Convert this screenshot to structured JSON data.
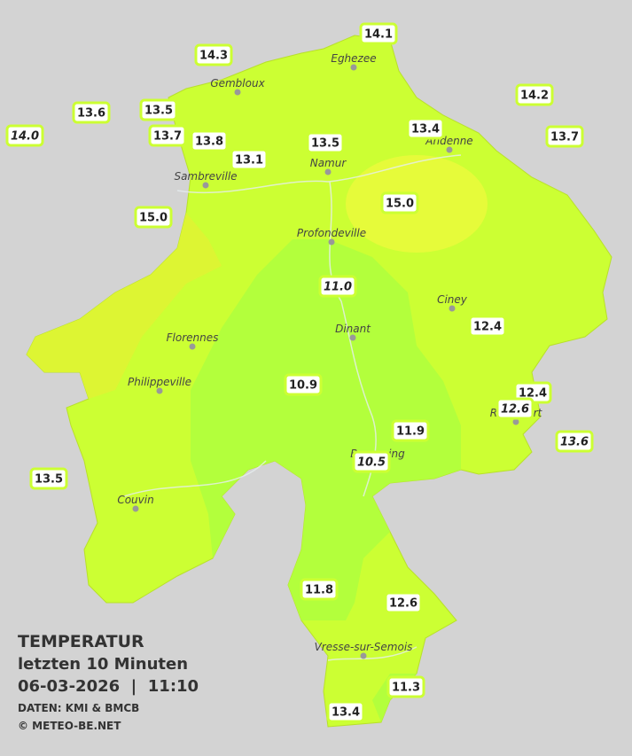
{
  "legend": {
    "title": "TEMPERATUR",
    "subtitle": "letzten 10 Minuten",
    "timestamp": "06-03-2026  |  11:10",
    "source": "DATEN: KMI & BMCB",
    "copyright": "© METEO-BE.NET"
  },
  "cities": [
    {
      "name": "Eghezee"
    },
    {
      "name": "Gembloux"
    },
    {
      "name": "Andenne"
    },
    {
      "name": "Namur"
    },
    {
      "name": "Sambreville"
    },
    {
      "name": "Profondeville"
    },
    {
      "name": "Ciney"
    },
    {
      "name": "Dinant"
    },
    {
      "name": "Florennes"
    },
    {
      "name": "Philippeville"
    },
    {
      "name": "Rochefort"
    },
    {
      "name": "Beauraing"
    },
    {
      "name": "Couvin"
    },
    {
      "name": "Vresse-sur-Semois"
    }
  ],
  "stations": [
    {
      "text": "14.1",
      "italic": false
    },
    {
      "text": "14.3",
      "italic": false
    },
    {
      "text": "13.6",
      "italic": false
    },
    {
      "text": "13.5",
      "italic": false
    },
    {
      "text": "14.2",
      "italic": false
    },
    {
      "text": "14.0",
      "italic": true
    },
    {
      "text": "13.7",
      "italic": false
    },
    {
      "text": "13.8",
      "italic": false
    },
    {
      "text": "13.4",
      "italic": false
    },
    {
      "text": "13.5",
      "italic": false
    },
    {
      "text": "13.7",
      "italic": false
    },
    {
      "text": "13.1",
      "italic": false
    },
    {
      "text": "15.0",
      "italic": false
    },
    {
      "text": "15.0",
      "italic": false
    },
    {
      "text": "11.0",
      "italic": true
    },
    {
      "text": "12.4",
      "italic": false
    },
    {
      "text": "10.9",
      "italic": false
    },
    {
      "text": "12.4",
      "italic": false
    },
    {
      "text": "12.6",
      "italic": true
    },
    {
      "text": "11.9",
      "italic": false
    },
    {
      "text": "13.6",
      "italic": true
    },
    {
      "text": "10.5",
      "italic": true
    },
    {
      "text": "13.5",
      "italic": false
    },
    {
      "text": "11.8",
      "italic": false
    },
    {
      "text": "12.6",
      "italic": false
    },
    {
      "text": "11.3",
      "italic": false
    },
    {
      "text": "13.4",
      "italic": false
    }
  ]
}
